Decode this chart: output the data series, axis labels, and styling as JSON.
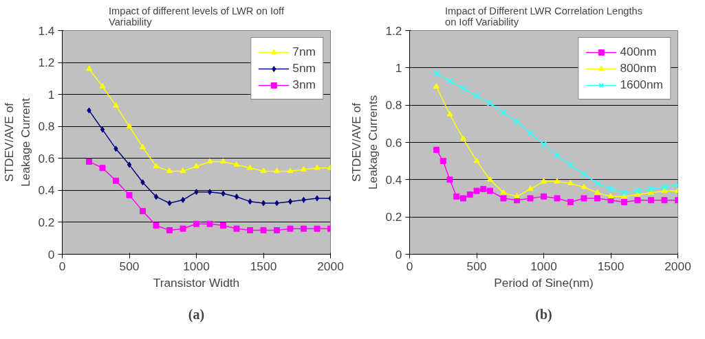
{
  "chart_data": [
    {
      "type": "line",
      "title": "Impact of different levels of LWR on Ioff Variability",
      "xlabel": "Transistor Width",
      "ylabel": "STDEV/AVE of Leakage Current",
      "annotations": [
        "(a)"
      ],
      "x": [
        200,
        300,
        400,
        500,
        600,
        700,
        800,
        900,
        1000,
        1100,
        1200,
        1300,
        1400,
        1500,
        1600,
        1700,
        1800,
        1900,
        2000
      ],
      "series": [
        {
          "name": "7nm",
          "color": "#ffff00",
          "marker": "triangle",
          "values": [
            1.16,
            1.05,
            0.93,
            0.8,
            0.67,
            0.55,
            0.52,
            0.52,
            0.55,
            0.58,
            0.58,
            0.56,
            0.54,
            0.52,
            0.52,
            0.52,
            0.53,
            0.54,
            0.54
          ]
        },
        {
          "name": "5nm",
          "color": "#000080",
          "marker": "diamond",
          "values": [
            0.9,
            0.78,
            0.66,
            0.56,
            0.45,
            0.36,
            0.32,
            0.34,
            0.39,
            0.39,
            0.38,
            0.36,
            0.33,
            0.32,
            0.32,
            0.33,
            0.34,
            0.35,
            0.35
          ]
        },
        {
          "name": "3nm",
          "color": "#ff00ff",
          "marker": "square",
          "values": [
            0.58,
            0.54,
            0.46,
            0.37,
            0.27,
            0.18,
            0.15,
            0.16,
            0.19,
            0.19,
            0.18,
            0.16,
            0.15,
            0.15,
            0.15,
            0.16,
            0.16,
            0.16,
            0.16
          ]
        }
      ],
      "xlim": [
        0,
        2000
      ],
      "xticks": [
        0,
        500,
        1000,
        1500,
        2000
      ],
      "ylim": [
        0,
        1.4
      ],
      "yticks": [
        0,
        0.2,
        0.4,
        0.6,
        0.8,
        1,
        1.2,
        1.4
      ],
      "grid": "y",
      "legend": "top right"
    },
    {
      "type": "line",
      "title": "Impact of Different LWR Correlation Lengths on Ioff Variability",
      "xlabel": "Period of Sine(nm)",
      "ylabel": "STDEV/AVE of Leakage Currents",
      "annotations": [
        "(b)"
      ],
      "x": [
        200,
        300,
        400,
        500,
        600,
        700,
        800,
        900,
        1000,
        1100,
        1200,
        1300,
        1400,
        1500,
        1600,
        1700,
        1800,
        1900,
        2000
      ],
      "series": [
        {
          "name": "400nm",
          "color": "#ff00ff",
          "marker": "square",
          "x": [
            200,
            250,
            300,
            350,
            400,
            450,
            500,
            550,
            600,
            700,
            800,
            900,
            1000,
            1100,
            1200,
            1300,
            1400,
            1500,
            1600,
            1700,
            1800,
            1900,
            2000
          ],
          "values": [
            0.56,
            0.5,
            0.4,
            0.31,
            0.3,
            0.32,
            0.34,
            0.35,
            0.34,
            0.3,
            0.29,
            0.3,
            0.31,
            0.3,
            0.28,
            0.3,
            0.3,
            0.29,
            0.28,
            0.29,
            0.29,
            0.29,
            0.29
          ]
        },
        {
          "name": "800nm",
          "color": "#ffff00",
          "marker": "triangle",
          "values": [
            0.9,
            0.75,
            0.62,
            0.5,
            0.4,
            0.33,
            0.31,
            0.35,
            0.39,
            0.39,
            0.38,
            0.36,
            0.33,
            0.31,
            0.31,
            0.32,
            0.33,
            0.34,
            0.34
          ]
        },
        {
          "name": "1600nm",
          "color": "#33ffff",
          "marker": "cross",
          "values": [
            0.97,
            0.93,
            0.89,
            0.85,
            0.81,
            0.76,
            0.71,
            0.65,
            0.59,
            0.53,
            0.48,
            0.43,
            0.38,
            0.35,
            0.33,
            0.34,
            0.35,
            0.36,
            0.37
          ]
        }
      ],
      "xlim": [
        0,
        2000
      ],
      "xticks": [
        0,
        500,
        1000,
        1500,
        2000
      ],
      "ylim": [
        0,
        1.2
      ],
      "yticks": [
        0,
        0.2,
        0.4,
        0.6,
        0.8,
        1,
        1.2
      ],
      "grid": "y",
      "legend": "top right"
    }
  ]
}
